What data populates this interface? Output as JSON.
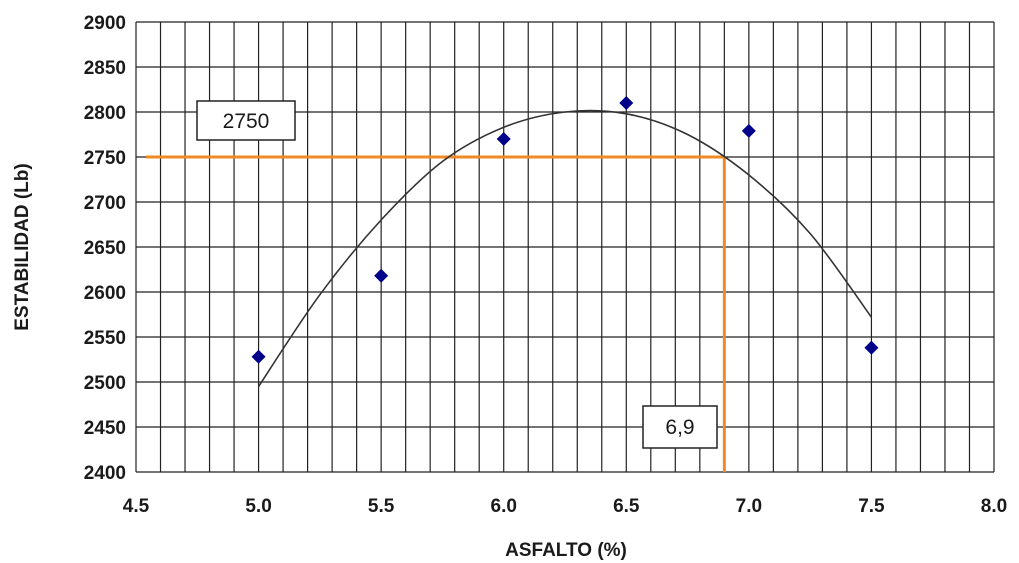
{
  "chart_data": {
    "type": "scatter",
    "xlabel": "ASFALTO (%)",
    "ylabel": "ESTABILIDAD (Lb)",
    "xlim": [
      4.5,
      8.0
    ],
    "ylim": [
      2400,
      2900
    ],
    "x_ticks": [
      "4.5",
      "5.0",
      "5.5",
      "6.0",
      "6.5",
      "7.0",
      "7.5",
      "8.0"
    ],
    "y_ticks": [
      "2400",
      "2450",
      "2500",
      "2550",
      "2600",
      "2650",
      "2700",
      "2750",
      "2800",
      "2850",
      "2900"
    ],
    "grid": true,
    "points": [
      {
        "x": 5.0,
        "y": 2528
      },
      {
        "x": 5.5,
        "y": 2618
      },
      {
        "x": 6.0,
        "y": 2770
      },
      {
        "x": 6.5,
        "y": 2810
      },
      {
        "x": 7.0,
        "y": 2779
      },
      {
        "x": 7.5,
        "y": 2538
      }
    ],
    "marker_color": "#00008b",
    "fit_curve": {
      "x": [
        5.0,
        5.25,
        5.5,
        5.75,
        6.0,
        6.25,
        6.5,
        6.75,
        7.0,
        7.25,
        7.5
      ],
      "y": [
        2495,
        2597,
        2680,
        2745,
        2783,
        2800,
        2798,
        2775,
        2730,
        2665,
        2572
      ],
      "color": "#333333"
    },
    "reference_lines": {
      "y_value": 2750,
      "x_value": 6.9,
      "color": "#f08a24"
    },
    "annotations": [
      {
        "text": "2750",
        "near": "y-reference"
      },
      {
        "text": "6,9",
        "near": "x-reference"
      }
    ]
  }
}
